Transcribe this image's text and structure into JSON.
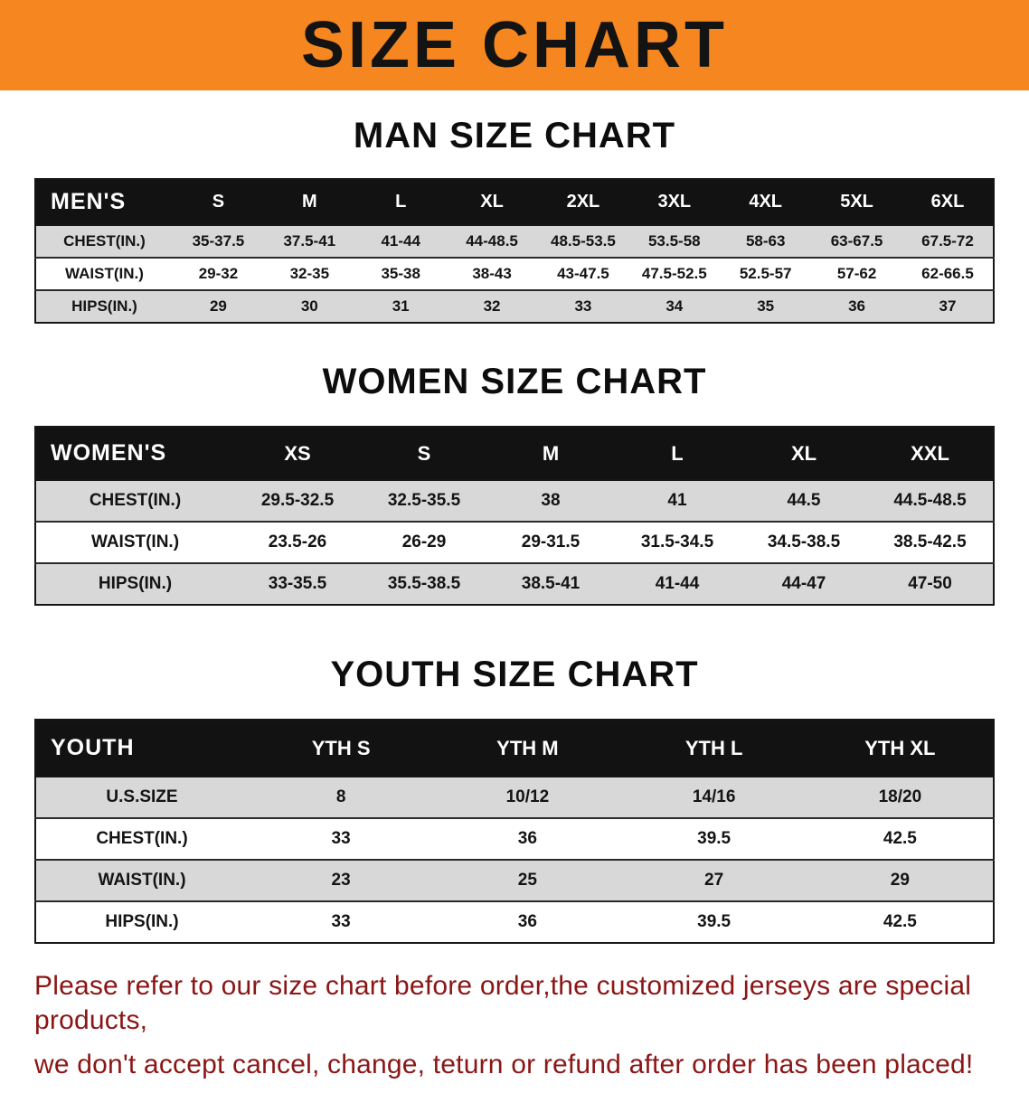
{
  "banner": {
    "title": "SIZE CHART"
  },
  "colors": {
    "banner_bg": "#F6861F",
    "header_bg": "#121212",
    "row_alt": "#D8D8D8",
    "notice_text": "#8B1616"
  },
  "sections": [
    {
      "id": "men",
      "heading": "MAN SIZE CHART",
      "table": {
        "label": "MEN'S",
        "columns": [
          "S",
          "M",
          "L",
          "XL",
          "2XL",
          "3XL",
          "4XL",
          "5XL",
          "6XL"
        ],
        "rows": [
          {
            "label": "CHEST(IN.)",
            "values": [
              "35-37.5",
              "37.5-41",
              "41-44",
              "44-48.5",
              "48.5-53.5",
              "53.5-58",
              "58-63",
              "63-67.5",
              "67.5-72"
            ]
          },
          {
            "label": "WAIST(IN.)",
            "values": [
              "29-32",
              "32-35",
              "35-38",
              "38-43",
              "43-47.5",
              "47.5-52.5",
              "52.5-57",
              "57-62",
              "62-66.5"
            ]
          },
          {
            "label": "HIPS(IN.)",
            "values": [
              "29",
              "30",
              "31",
              "32",
              "33",
              "34",
              "35",
              "36",
              "37"
            ]
          }
        ]
      }
    },
    {
      "id": "women",
      "heading": "WOMEN SIZE CHART",
      "table": {
        "label": "WOMEN'S",
        "columns": [
          "XS",
          "S",
          "M",
          "L",
          "XL",
          "XXL"
        ],
        "rows": [
          {
            "label": "CHEST(IN.)",
            "values": [
              "29.5-32.5",
              "32.5-35.5",
              "38",
              "41",
              "44.5",
              "44.5-48.5"
            ]
          },
          {
            "label": "WAIST(IN.)",
            "values": [
              "23.5-26",
              "26-29",
              "29-31.5",
              "31.5-34.5",
              "34.5-38.5",
              "38.5-42.5"
            ]
          },
          {
            "label": "HIPS(IN.)",
            "values": [
              "33-35.5",
              "35.5-38.5",
              "38.5-41",
              "41-44",
              "44-47",
              "47-50"
            ]
          }
        ]
      }
    },
    {
      "id": "youth",
      "heading": "YOUTH SIZE CHART",
      "table": {
        "label": "YOUTH",
        "columns": [
          "YTH S",
          "YTH M",
          "YTH L",
          "YTH XL"
        ],
        "rows": [
          {
            "label": "U.S.SIZE",
            "values": [
              "8",
              "10/12",
              "14/16",
              "18/20"
            ]
          },
          {
            "label": "CHEST(IN.)",
            "values": [
              "33",
              "36",
              "39.5",
              "42.5"
            ]
          },
          {
            "label": "WAIST(IN.)",
            "values": [
              "23",
              "25",
              "27",
              "29"
            ]
          },
          {
            "label": "HIPS(IN.)",
            "values": [
              "33",
              "36",
              "39.5",
              "42.5"
            ]
          }
        ]
      }
    }
  ],
  "footer": {
    "line1": "Please refer to our size chart before order,the customized jerseys are special products,",
    "line2": "we don't accept cancel, change, teturn or refund after order has been placed!"
  }
}
